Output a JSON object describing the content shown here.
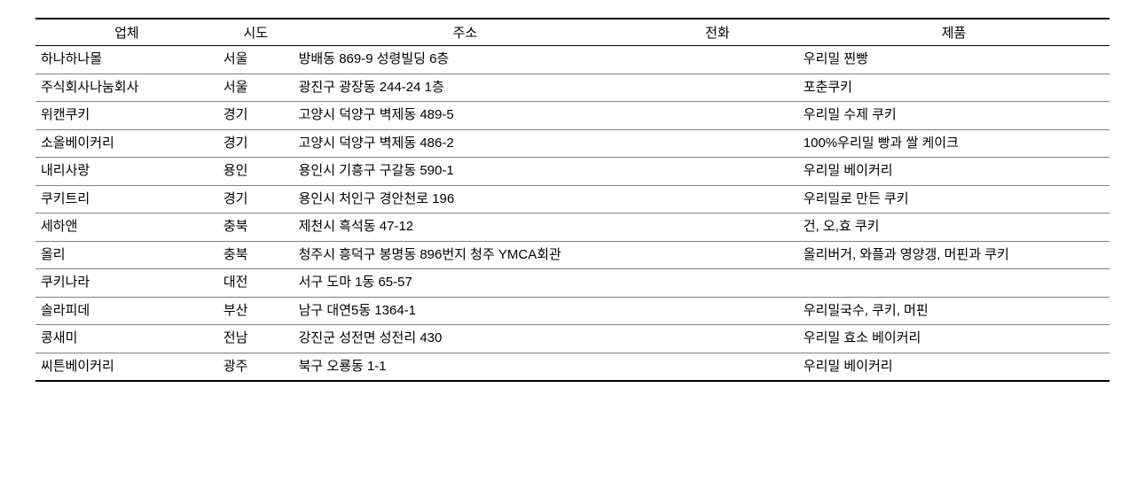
{
  "table": {
    "columns": {
      "company": "업체",
      "province": "시도",
      "address": "주소",
      "phone": "전화",
      "product": "제품"
    },
    "rows": [
      {
        "company": "하나하나몰",
        "province": "서울",
        "address": "방배동 869-9 성령빌딩 6층",
        "phone": "",
        "product": "우리밀 찐빵"
      },
      {
        "company": "주식회사나눔회사",
        "province": "서울",
        "address": "광진구 광장동 244-24 1층",
        "phone": "",
        "product": "포춘쿠키"
      },
      {
        "company": "위캔쿠키",
        "province": "경기",
        "address": "고양시 덕양구 벽제동 489-5",
        "phone": "",
        "product": "우리밀 수제 쿠키"
      },
      {
        "company": "소올베이커리",
        "province": "경기",
        "address": "고양시 덕양구 벽제동 486-2",
        "phone": "",
        "product": "100%우리밀 빵과 쌀 케이크"
      },
      {
        "company": "내리사랑",
        "province": "용인",
        "address": "용인시 기흥구 구갈동 590-1",
        "phone": "",
        "product": "우리밀 베이커리"
      },
      {
        "company": "쿠키트리",
        "province": "경기",
        "address": "용인시 처인구 경안천로 196",
        "phone": "",
        "product": "우리밀로 만든 쿠키"
      },
      {
        "company": "세하앤",
        "province": "충북",
        "address": "제천시 흑석동 47-12",
        "phone": "",
        "product": "건, 오,효 쿠키"
      },
      {
        "company": "올리",
        "province": "충북",
        "address": "청주시 흥덕구 봉명동 896번지 청주 YMCA회관",
        "phone": "",
        "product": "올리버거, 와플과 영양갱, 머핀과 쿠키"
      },
      {
        "company": "쿠키나라",
        "province": "대전",
        "address": "서구 도마 1동 65-57",
        "phone": "",
        "product": ""
      },
      {
        "company": "솔라피데",
        "province": "부산",
        "address": "남구 대연5동 1364-1",
        "phone": "",
        "product": "우리밀국수, 쿠키, 머핀"
      },
      {
        "company": "콩새미",
        "province": "전남",
        "address": "강진군 성전면 성전리 430",
        "phone": "",
        "product": "우리밀 효소 베이커리"
      },
      {
        "company": "씨튼베이커리",
        "province": "광주",
        "address": "북구 오룡동 1-1",
        "phone": "",
        "product": "우리밀 베이커리"
      }
    ]
  }
}
